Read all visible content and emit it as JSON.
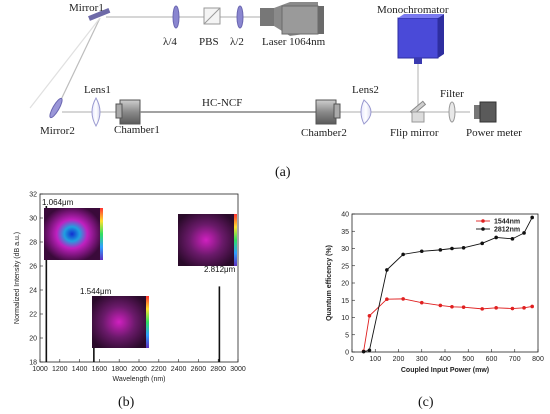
{
  "setup": {
    "labels": {
      "mirror1": "Mirror1",
      "quarter_wave": "λ/4",
      "pbs": "PBS",
      "half_wave": "λ/2",
      "laser": "Laser 1064nm",
      "monochromator": "Monochromator",
      "lens1": "Lens1",
      "chamber1": "Chamber1",
      "fiber": "HC-NCF",
      "chamber2": "Chamber2",
      "lens2": "Lens2",
      "filter": "Filter",
      "mirror2": "Mirror2",
      "flip_mirror": "Flip mirror",
      "power_meter": "Power meter"
    },
    "caption": "(a)",
    "colors": {
      "monochromator": "#4a4ad8",
      "optics": "#8a86d0",
      "beam": "#bbbbbb"
    }
  },
  "panel_b": {
    "caption": "(b)",
    "peak_labels": [
      "1.064μm",
      "1.544μm",
      "2.812μm"
    ]
  },
  "panel_c": {
    "caption": "(c)"
  },
  "chart_data": [
    {
      "type": "line",
      "xlabel": "Wavelength (nm)",
      "ylabel": "Normalized Intensity (dB a.u.)",
      "xlim": [
        1000,
        3000
      ],
      "ylim": [
        18,
        32
      ],
      "xticks": [
        1000,
        1200,
        1400,
        1600,
        1800,
        2000,
        2200,
        2400,
        2600,
        2800,
        3000
      ],
      "yticks": [
        18,
        20,
        22,
        24,
        26,
        28,
        30,
        32
      ],
      "peaks": [
        {
          "x": 1064,
          "y": 31.0
        },
        {
          "x": 1544,
          "y": 21.3
        },
        {
          "x": 2812,
          "y": 24.3
        }
      ]
    },
    {
      "type": "line",
      "xlabel": "Coupled Input Power (mw)",
      "ylabel": "Quantum efficency (%)",
      "xlim": [
        0,
        800
      ],
      "ylim": [
        0,
        40
      ],
      "xticks": [
        0,
        100,
        200,
        300,
        400,
        500,
        600,
        700,
        800
      ],
      "yticks": [
        0,
        5,
        10,
        15,
        20,
        25,
        30,
        35,
        40
      ],
      "legend_position": "top-right",
      "series": [
        {
          "name": "1544nm",
          "color": "#e02020",
          "x": [
            50,
            75,
            150,
            220,
            300,
            380,
            430,
            480,
            560,
            620,
            690,
            740,
            775
          ],
          "y": [
            0.2,
            10.5,
            15.3,
            15.4,
            14.3,
            13.5,
            13.1,
            13.0,
            12.5,
            12.8,
            12.6,
            12.8,
            13.2
          ]
        },
        {
          "name": "2812nm",
          "color": "#111111",
          "x": [
            50,
            75,
            150,
            220,
            300,
            380,
            430,
            480,
            560,
            620,
            690,
            740,
            775
          ],
          "y": [
            0.1,
            0.5,
            23.8,
            28.3,
            29.2,
            29.6,
            30.0,
            30.2,
            31.5,
            33.2,
            32.8,
            34.5,
            39.0
          ]
        }
      ]
    }
  ]
}
